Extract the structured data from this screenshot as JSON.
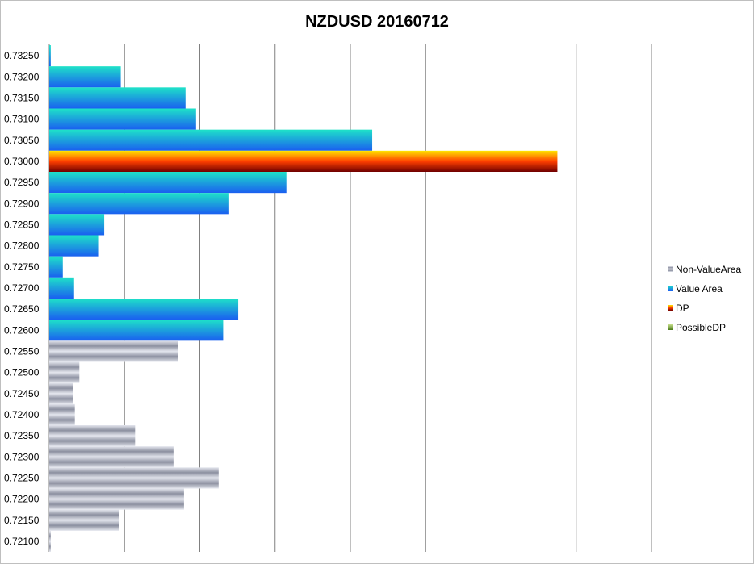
{
  "chart_data": {
    "type": "bar",
    "orientation": "horizontal",
    "title": "NZDUSD 20160712",
    "xlabel": "",
    "ylabel": "",
    "xlim": [
      0,
      940
    ],
    "x_gridlines": [
      0,
      100,
      200,
      300,
      400,
      500,
      600,
      700,
      800
    ],
    "grid": true,
    "legend_position": "right",
    "colors": {
      "Non-ValueArea": [
        "#e4e6ee",
        "#8c90a0"
      ],
      "Value Area": [
        "#1ee2c8",
        "#1a5ff0"
      ],
      "DP": [
        "#ffe800",
        "#ff4000",
        "#700000"
      ],
      "PossibleDP": [
        "#c8e08c",
        "#4a7a1a"
      ]
    },
    "legend": [
      "Non-ValueArea",
      "Value Area",
      "DP",
      "PossibleDP"
    ],
    "categories": [
      "0.73250",
      "0.73200",
      "0.73150",
      "0.73100",
      "0.73050",
      "0.73000",
      "0.72950",
      "0.72900",
      "0.72850",
      "0.72800",
      "0.72750",
      "0.72700",
      "0.72650",
      "0.72600",
      "0.72550",
      "0.72500",
      "0.72450",
      "0.72400",
      "0.72350",
      "0.72300",
      "0.72250",
      "0.72200",
      "0.72150",
      "0.72100"
    ],
    "bars": [
      {
        "price": "0.73250",
        "value": 2,
        "series": "Value Area"
      },
      {
        "price": "0.73200",
        "value": 95,
        "series": "Value Area"
      },
      {
        "price": "0.73150",
        "value": 181,
        "series": "Value Area"
      },
      {
        "price": "0.73100",
        "value": 195,
        "series": "Value Area"
      },
      {
        "price": "0.73050",
        "value": 429,
        "series": "Value Area"
      },
      {
        "price": "0.73000",
        "value": 675,
        "series": "DP"
      },
      {
        "price": "0.72950",
        "value": 315,
        "series": "Value Area"
      },
      {
        "price": "0.72900",
        "value": 239,
        "series": "Value Area"
      },
      {
        "price": "0.72850",
        "value": 73,
        "series": "Value Area"
      },
      {
        "price": "0.72800",
        "value": 66,
        "series": "Value Area"
      },
      {
        "price": "0.72750",
        "value": 18,
        "series": "Value Area"
      },
      {
        "price": "0.72700",
        "value": 33,
        "series": "Value Area"
      },
      {
        "price": "0.72650",
        "value": 251,
        "series": "Value Area"
      },
      {
        "price": "0.72600",
        "value": 231,
        "series": "Value Area"
      },
      {
        "price": "0.72550",
        "value": 171,
        "series": "Non-ValueArea"
      },
      {
        "price": "0.72500",
        "value": 40,
        "series": "Non-ValueArea"
      },
      {
        "price": "0.72450",
        "value": 32,
        "series": "Non-ValueArea"
      },
      {
        "price": "0.72400",
        "value": 34,
        "series": "Non-ValueArea"
      },
      {
        "price": "0.72350",
        "value": 114,
        "series": "Non-ValueArea"
      },
      {
        "price": "0.72300",
        "value": 165,
        "series": "Non-ValueArea"
      },
      {
        "price": "0.72250",
        "value": 225,
        "series": "Non-ValueArea"
      },
      {
        "price": "0.72200",
        "value": 179,
        "series": "Non-ValueArea"
      },
      {
        "price": "0.72150",
        "value": 93,
        "series": "Non-ValueArea"
      },
      {
        "price": "0.72100",
        "value": 2,
        "series": "Non-ValueArea"
      }
    ]
  }
}
